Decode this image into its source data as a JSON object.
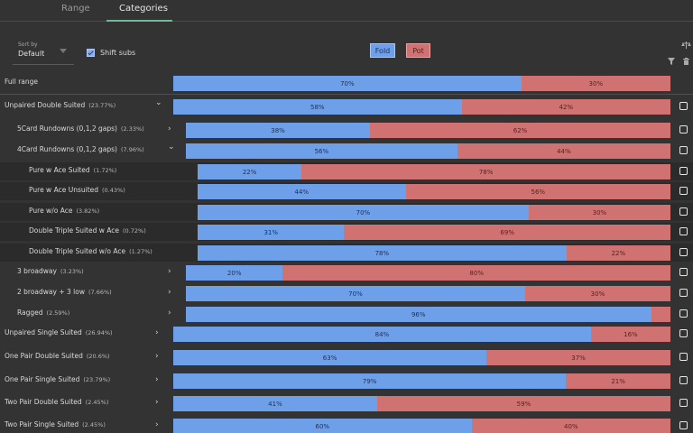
{
  "tabs": [
    {
      "label": "Range",
      "active": false
    },
    {
      "label": "Categories",
      "active": true
    }
  ],
  "controls": {
    "sort_by_caption": "Sort by",
    "sort_by_value": "Default",
    "shift_subs_label": "Shift subs",
    "shift_subs_checked": true
  },
  "legend": {
    "fold": "Fold",
    "pot": "Pot"
  },
  "icons": {
    "scale": "balance-scale-icon",
    "filter": "filter-icon",
    "trash": "trash-icon"
  },
  "colors": {
    "fold": "#6ea0ea",
    "pot": "#d07272",
    "accent": "#6fb89a",
    "background": "#333333"
  },
  "rows": [
    {
      "label": "Full range",
      "pct": "",
      "level": 0,
      "expand": false,
      "chev": "",
      "fold": 70,
      "pot": 30,
      "fold_label": "70%",
      "pot_label": "30%",
      "check": false
    },
    {
      "label": "Unpaired Double Suited",
      "pct": "(23.77%)",
      "level": 0,
      "expand": true,
      "chev": "⌄",
      "fold": 58,
      "pot": 42,
      "fold_label": "58%",
      "pot_label": "42%",
      "check": true
    },
    {
      "label": "5Card Rundowns (0,1,2 gaps)",
      "pct": "(2.33%)",
      "level": 1,
      "expand": true,
      "chev": "›",
      "fold": 38,
      "pot": 62,
      "fold_label": "38%",
      "pot_label": "62%",
      "check": true
    },
    {
      "label": "4Card Rundowns (0,1,2 gaps)",
      "pct": "(7.96%)",
      "level": 1,
      "expand": true,
      "chev": "⌄",
      "fold": 56,
      "pot": 44,
      "fold_label": "56%",
      "pot_label": "44%",
      "check": true
    },
    {
      "label": "Pure w Ace Suited",
      "pct": "(1.72%)",
      "level": 2,
      "expand": false,
      "chev": "",
      "fold": 22,
      "pot": 78,
      "fold_label": "22%",
      "pot_label": "78%",
      "check": true
    },
    {
      "label": "Pure w Ace Unsuited",
      "pct": "(0.43%)",
      "level": 2,
      "expand": false,
      "chev": "",
      "fold": 44,
      "pot": 56,
      "fold_label": "44%",
      "pot_label": "56%",
      "check": true
    },
    {
      "label": "Pure w/o Ace",
      "pct": "(3.82%)",
      "level": 2,
      "expand": false,
      "chev": "",
      "fold": 70,
      "pot": 30,
      "fold_label": "70%",
      "pot_label": "30%",
      "check": true
    },
    {
      "label": "Double Triple Suited w Ace",
      "pct": "(0.72%)",
      "level": 2,
      "expand": false,
      "chev": "",
      "fold": 31,
      "pot": 69,
      "fold_label": "31%",
      "pot_label": "69%",
      "check": true
    },
    {
      "label": "Double Triple Suited w/o Ace",
      "pct": "(1.27%)",
      "level": 2,
      "expand": false,
      "chev": "",
      "fold": 78,
      "pot": 22,
      "fold_label": "78%",
      "pot_label": "22%",
      "check": true
    },
    {
      "label": "3 broadway",
      "pct": "(3.23%)",
      "level": 1,
      "expand": true,
      "chev": "›",
      "fold": 20,
      "pot": 80,
      "fold_label": "20%",
      "pot_label": "80%",
      "check": true
    },
    {
      "label": "2 broadway + 3 low",
      "pct": "(7.66%)",
      "level": 1,
      "expand": true,
      "chev": "›",
      "fold": 70,
      "pot": 30,
      "fold_label": "70%",
      "pot_label": "30%",
      "check": true
    },
    {
      "label": "Ragged",
      "pct": "(2.59%)",
      "level": 1,
      "expand": true,
      "chev": "›",
      "fold": 96,
      "pot": 4,
      "fold_label": "96%",
      "pot_label": "",
      "check": true
    },
    {
      "label": "Unpaired Single Suited",
      "pct": "(26.94%)",
      "level": 0,
      "expand": true,
      "chev": "›",
      "fold": 84,
      "pot": 16,
      "fold_label": "84%",
      "pot_label": "16%",
      "check": true
    },
    {
      "label": "One Pair Double Suited",
      "pct": "(20.6%)",
      "level": 0,
      "expand": true,
      "chev": "›",
      "fold": 63,
      "pot": 37,
      "fold_label": "63%",
      "pot_label": "37%",
      "check": true
    },
    {
      "label": "One Pair Single Suited",
      "pct": "(23.79%)",
      "level": 0,
      "expand": true,
      "chev": "›",
      "fold": 79,
      "pot": 21,
      "fold_label": "79%",
      "pot_label": "21%",
      "check": true
    },
    {
      "label": "Two Pair Double Suited",
      "pct": "(2.45%)",
      "level": 0,
      "expand": true,
      "chev": "›",
      "fold": 41,
      "pot": 59,
      "fold_label": "41%",
      "pot_label": "59%",
      "check": true
    },
    {
      "label": "Two Pair Single Suited",
      "pct": "(2.45%)",
      "level": 0,
      "expand": true,
      "chev": "›",
      "fold": 60,
      "pot": 40,
      "fold_label": "60%",
      "pot_label": "40%",
      "check": true
    }
  ]
}
